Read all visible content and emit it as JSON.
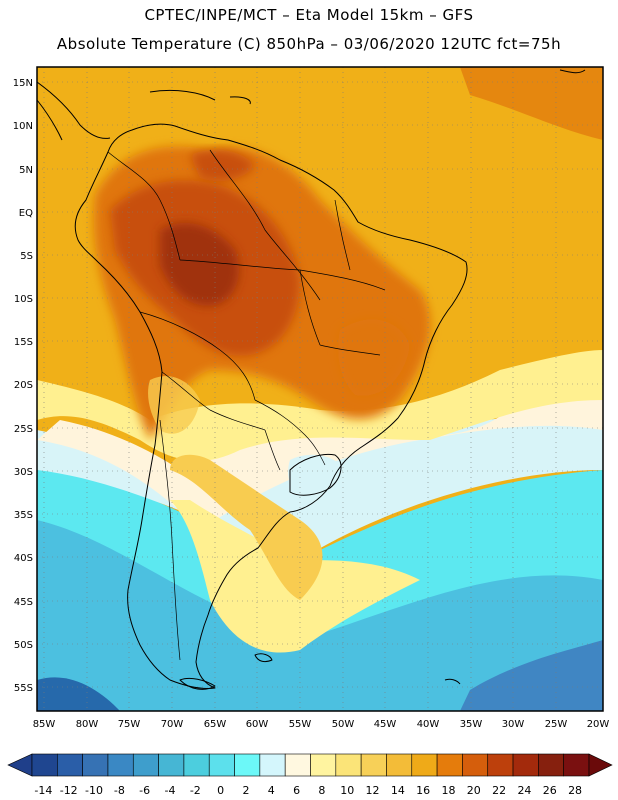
{
  "header": {
    "line1": "CPTEC/INPE/MCT –  Eta Model 15km – GFS",
    "line2": "Absolute Temperature (C) 850hPa – 03/06/2020 12UTC fct=75h"
  },
  "map": {
    "lat_labels": [
      "15N",
      "10N",
      "5N",
      "EQ",
      "5S",
      "10S",
      "15S",
      "20S",
      "25S",
      "30S",
      "35S",
      "40S",
      "45S",
      "50S",
      "55S"
    ],
    "lon_labels": [
      "85W",
      "80W",
      "75W",
      "70W",
      "65W",
      "60W",
      "55W",
      "50W",
      "45W",
      "40W",
      "35W",
      "30W",
      "25W",
      "20W"
    ],
    "field_levels": [
      "#1a4c9a",
      "#3f80c0",
      "#4cc0e0",
      "#5ce8f0",
      "#7cf8f8",
      "#d8f4f8",
      "#fff4dc",
      "#fff090",
      "#f8cc50",
      "#f0ac18",
      "#e0760c",
      "#c8500c",
      "#a03010"
    ]
  },
  "colorbar": {
    "colors": [
      "#1f4690",
      "#2a5ea8",
      "#3672b4",
      "#3a88c4",
      "#3e9ecc",
      "#46b6d4",
      "#4ccede",
      "#5ce0ec",
      "#6cf8f8",
      "#d4f6fc",
      "#fff8e0",
      "#fff4a0",
      "#fbe478",
      "#f7d058",
      "#f3bc38",
      "#efaa18",
      "#e57c0c",
      "#d55e0c",
      "#bd400c",
      "#a32a0c",
      "#86200e",
      "#7a1010"
    ],
    "labels": [
      "-14",
      "-12",
      "-10",
      "-8",
      "-6",
      "-4",
      "-2",
      "0",
      "2",
      "4",
      "6",
      "8",
      "10",
      "12",
      "14",
      "16",
      "18",
      "20",
      "22",
      "24",
      "26",
      "28"
    ]
  }
}
